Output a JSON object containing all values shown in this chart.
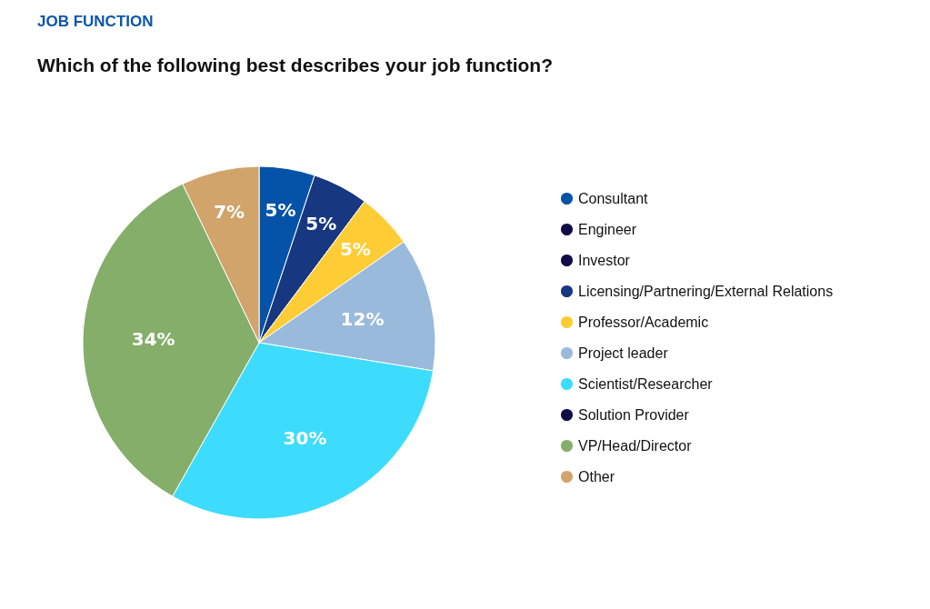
{
  "chart_data": {
    "type": "pie",
    "title": "JOB FUNCTION",
    "subtitle": "Which of the following best describes your job function?",
    "categories": [
      "Consultant",
      "Engineer",
      "Investor",
      "Licensing/Partnering/External Relations",
      "Professor/Academic",
      "Project leader",
      "Scientist/Researcher",
      "Solution Provider",
      "VP/Head/Director",
      "Other"
    ],
    "values": [
      5,
      0,
      0,
      5,
      5,
      12,
      30,
      0,
      34,
      7
    ],
    "colors": [
      "#0553a8",
      "#0f0c47",
      "#0f0c47",
      "#173780",
      "#fecd35",
      "#9abadc",
      "#3ddcfc",
      "#0f0c47",
      "#85ae6a",
      "#d1a46c"
    ],
    "value_labels": [
      "5%",
      null,
      null,
      "5%",
      "5%",
      "12%",
      "30%",
      null,
      "34%",
      "7%"
    ],
    "legend": "right"
  }
}
